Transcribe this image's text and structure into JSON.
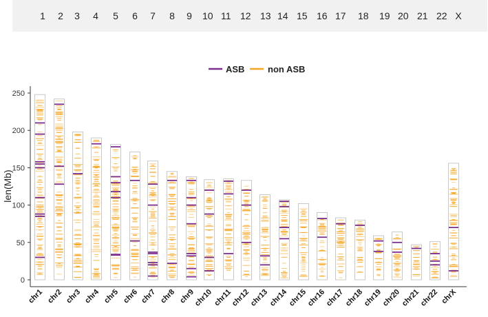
{
  "chromosome_selector": [
    "1",
    "2",
    "3",
    "4",
    "5",
    "6",
    "7",
    "8",
    "9",
    "10",
    "11",
    "12",
    "13",
    "14",
    "15",
    "16",
    "17",
    "18",
    "19",
    "20",
    "21",
    "22",
    "X"
  ],
  "colors": {
    "asb": "#7b2d8e",
    "non_asb": "#f5a623",
    "chrom_outline": "#bbbbbb",
    "axis": "#333333"
  },
  "chart_data": {
    "type": "ideogram",
    "title": "",
    "ylabel": "len(Mb)",
    "xlabel": "",
    "ylim": [
      0,
      250
    ],
    "yticks": [
      0,
      50,
      100,
      150,
      200,
      250
    ],
    "legend": {
      "position": "top-center",
      "entries": [
        {
          "name": "ASB",
          "color": "#7b2d8e"
        },
        {
          "name": "non ASB",
          "color": "#f5a623"
        }
      ]
    },
    "categories": [
      "chr1",
      "chr2",
      "chr3",
      "chr4",
      "chr5",
      "chr6",
      "chr7",
      "chr8",
      "chr9",
      "chr10",
      "chr11",
      "chr12",
      "chr13",
      "chr14",
      "chr15",
      "chr16",
      "chr17",
      "chr18",
      "chr19",
      "chr20",
      "chr21",
      "chr22",
      "chrX"
    ],
    "lengths_mb": [
      248,
      242,
      198,
      190,
      181,
      171,
      159,
      145,
      138,
      134,
      135,
      133,
      114,
      107,
      102,
      90,
      83,
      80,
      59,
      64,
      47,
      51,
      156
    ],
    "asb_positions_mb": [
      [
        30,
        85,
        88,
        110,
        150,
        155,
        158,
        195,
        210
      ],
      [
        128,
        152,
        235
      ],
      [
        142
      ],
      [
        182
      ],
      [
        33,
        34,
        110,
        118,
        130,
        138,
        178
      ],
      [
        52,
        133
      ],
      [
        5,
        20,
        23,
        35,
        37,
        100,
        128
      ],
      [
        22,
        133
      ],
      [
        4,
        15,
        32,
        35,
        75,
        100,
        110,
        133
      ],
      [
        12,
        30,
        88,
        120
      ],
      [
        35,
        115,
        132
      ],
      [
        50,
        100,
        120
      ],
      [
        20,
        32
      ],
      [
        55,
        70,
        98,
        105
      ],
      [],
      [
        57,
        82
      ],
      [
        75
      ],
      [
        73
      ],
      [
        38,
        52
      ],
      [
        37,
        50
      ],
      [
        42
      ],
      [
        20,
        25,
        35
      ],
      [
        12,
        70
      ]
    ]
  }
}
